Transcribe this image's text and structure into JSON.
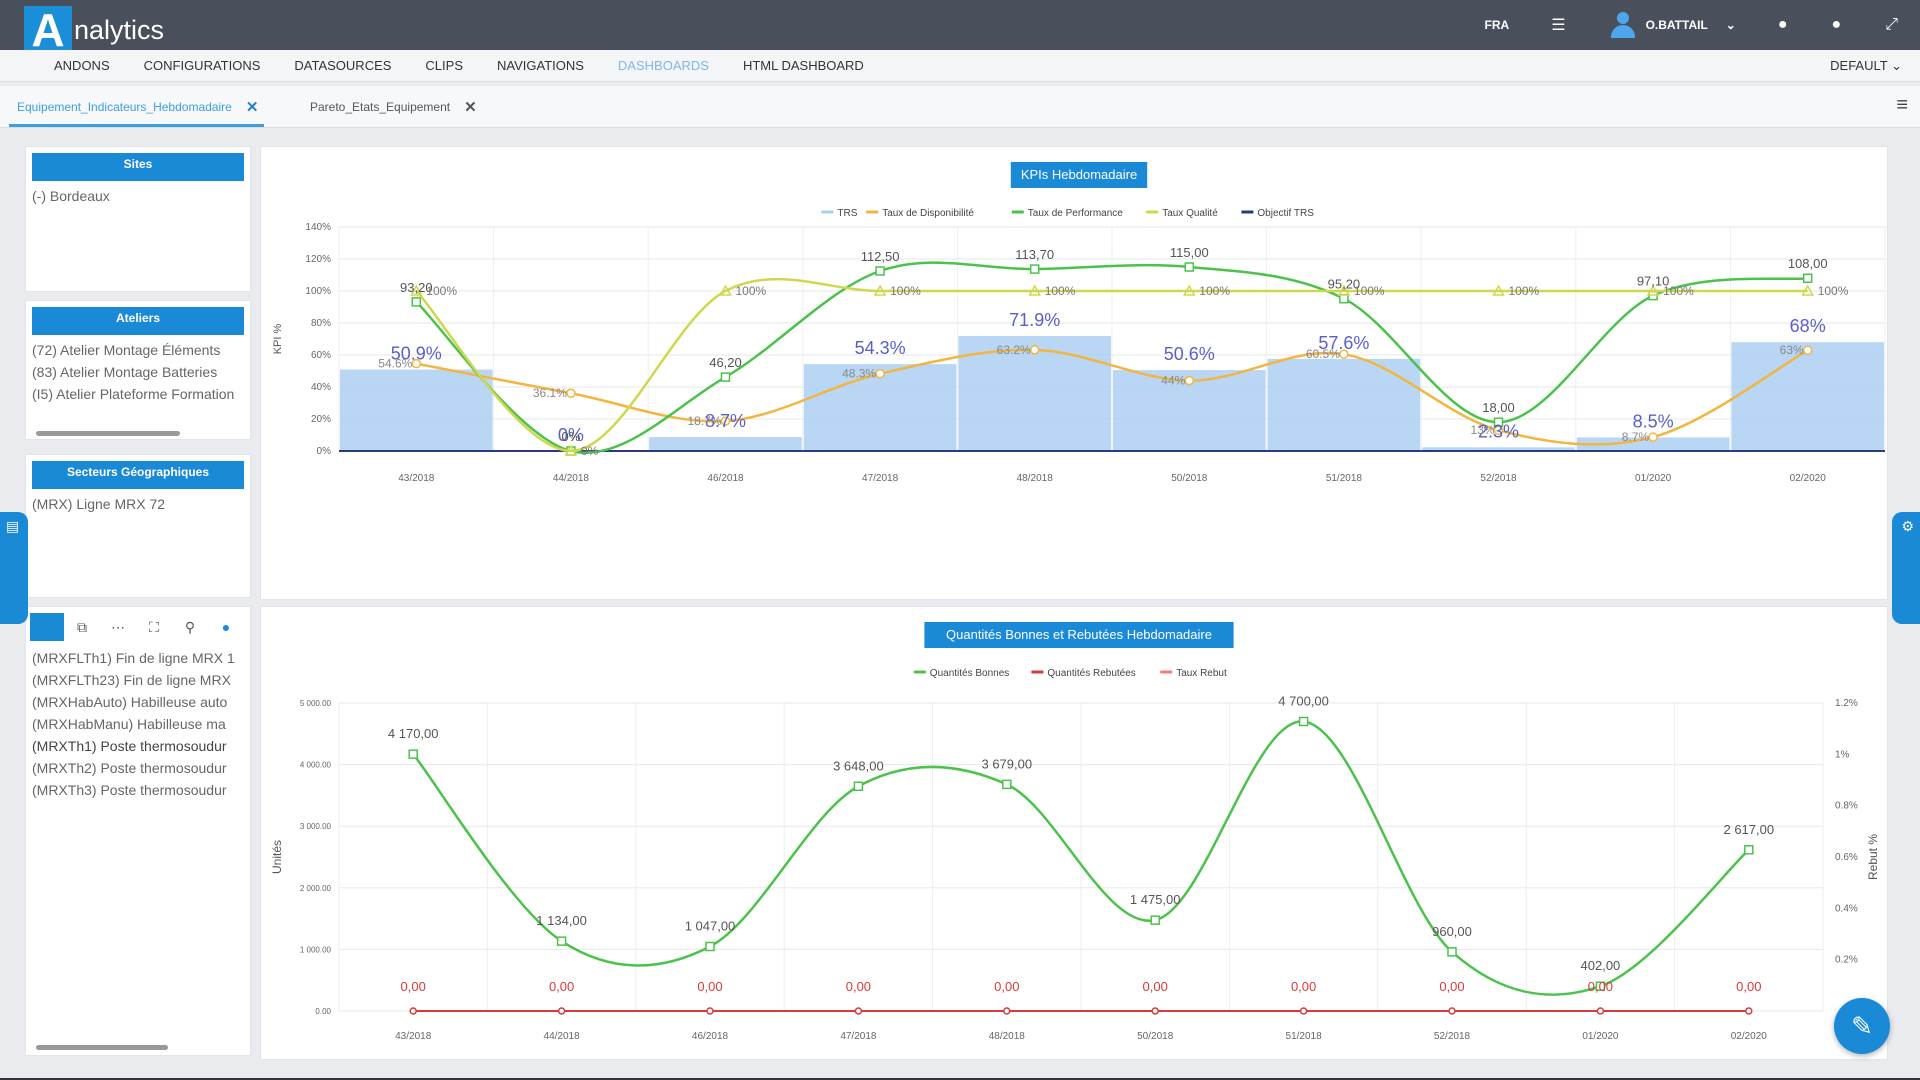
{
  "app": {
    "logo_letter": "A",
    "logo_rest": "nalytics"
  },
  "topbar": {
    "lang": "FRA",
    "user": "O.BATTAIL",
    "menu_icon": "list-icon",
    "help_icon": "question-icon",
    "info_icon": "info-icon",
    "fullscreen_icon": "expand-icon"
  },
  "menu": {
    "items": [
      "ANDONS",
      "CONFIGURATIONS",
      "DATASOURCES",
      "CLIPS",
      "NAVIGATIONS",
      "DASHBOARDS",
      "HTML DASHBOARD"
    ],
    "active": "DASHBOARDS",
    "default_label": "DEFAULT"
  },
  "tabs": [
    {
      "label": "Equipement_Indicateurs_Hebdomadaire",
      "close": "✕"
    },
    {
      "label": "Pareto_Etats_Equipement",
      "close": "✕"
    }
  ],
  "filters": {
    "sites": {
      "title": "Sites",
      "items": [
        "(-) Bordeaux"
      ]
    },
    "ateliers": {
      "title": "Ateliers",
      "items": [
        "(72) Atelier Montage Éléments",
        "(83) Atelier Montage Batteries",
        "(I5) Atelier Plateforme Formation"
      ]
    },
    "secteurs": {
      "title": "Secteurs Géographiques",
      "items": [
        "(MRX) Ligne MRX 72"
      ]
    },
    "equipements": {
      "items": [
        "(MRXFLTh1) Fin de ligne MRX 1",
        "(MRXFLTh23) Fin de ligne MRX",
        "(MRXHabAuto) Habilleuse auto",
        "(MRXHabManu) Habilleuse ma",
        "(MRXTh1) Poste thermosoudur",
        "(MRXTh2) Poste thermosoudur",
        "(MRXTh3) Poste thermosoudur"
      ]
    }
  },
  "chart_data": [
    {
      "type": "line",
      "title": "KPIs Hebdomadaire",
      "ylabel": "KPI %",
      "ylim": [
        0,
        140
      ],
      "yticks": [
        "0%",
        "20%",
        "40%",
        "60%",
        "80%",
        "100%",
        "120%",
        "140%"
      ],
      "categories": [
        "43/2018",
        "44/2018",
        "46/2018",
        "47/2018",
        "48/2018",
        "50/2018",
        "51/2018",
        "52/2018",
        "01/2020",
        "02/2020"
      ],
      "legend": [
        "TRS",
        "Taux de Disponibilité",
        "Taux de Performance",
        "Taux Qualité",
        "Objectif TRS"
      ],
      "colors": {
        "trs": "#a8cdf2",
        "dispo": "#f2b540",
        "perf": "#4cc24c",
        "qual": "#cfd84c",
        "objectif": "#2a3a7a"
      },
      "series": [
        {
          "name": "TRS",
          "kind": "bar",
          "values": [
            50.9,
            0,
            8.7,
            54.3,
            71.9,
            50.6,
            57.6,
            2.3,
            8.5,
            68
          ],
          "labels": [
            "50.9%",
            "0%",
            "8.7%",
            "54.3%",
            "71.9%",
            "50.6%",
            "57.6%",
            "2.3%",
            "8.5%",
            "68%"
          ]
        },
        {
          "name": "Taux de Disponibilité",
          "values": [
            54.6,
            36.1,
            18.7,
            48.3,
            63.2,
            44,
            60.5,
            13,
            8.7,
            63
          ],
          "labels": [
            "54.6%",
            "36.1%",
            "18.7%",
            "48.3%",
            "63.2%",
            "44%",
            "60.5%",
            "13%",
            "8.7%",
            "63%"
          ]
        },
        {
          "name": "Taux de Performance",
          "values": [
            93.2,
            0,
            46.2,
            112.5,
            113.7,
            115,
            95.2,
            18,
            97.1,
            108
          ],
          "labels": [
            "93,20",
            "0%",
            "46,20",
            "112,50",
            "113,70",
            "115,00",
            "95,20",
            "18,00",
            "97,10",
            "108,00"
          ]
        },
        {
          "name": "Taux Qualité",
          "values": [
            100,
            0,
            100,
            100,
            100,
            100,
            100,
            100,
            100,
            100
          ],
          "labels": [
            "100%",
            "0%",
            "100%",
            "100%",
            "100%",
            "100%",
            "100%",
            "100%",
            "100%",
            "100%"
          ]
        },
        {
          "name": "Objectif TRS",
          "values": [
            0,
            0,
            0,
            0,
            0,
            0,
            0,
            0,
            0,
            0
          ]
        }
      ]
    },
    {
      "type": "line",
      "title": "Quantités Bonnes et Rebutées Hebdomadaire",
      "ylabel": "Unités",
      "y2label": "Rebut %",
      "ylim": [
        0,
        5000
      ],
      "yticks": [
        "0.00",
        "1 000.00",
        "2 000.00",
        "3 000.00",
        "4 000.00",
        "5 000.00"
      ],
      "y2ticks": [
        "0.2%",
        "0.4%",
        "0.6%",
        "0.8%",
        "1%",
        "1.2%"
      ],
      "categories": [
        "43/2018",
        "44/2018",
        "46/2018",
        "47/2018",
        "48/2018",
        "50/2018",
        "51/2018",
        "52/2018",
        "01/2020",
        "02/2020"
      ],
      "legend": [
        "Quantités Bonnes",
        "Quantités Rebutées",
        "Taux Rebut"
      ],
      "colors": {
        "bonnes": "#4cc24c",
        "rebutees": "#d93a3a",
        "taux": "#f07d7d"
      },
      "series": [
        {
          "name": "Quantités Bonnes",
          "values": [
            4170,
            1134,
            1047,
            3648,
            3679,
            1475,
            4700,
            960,
            402,
            2617
          ],
          "labels": [
            "4 170,00",
            "1 134,00",
            "1 047,00",
            "3 648,00",
            "3 679,00",
            "1 475,00",
            "4 700,00",
            "960,00",
            "402,00",
            "2 617,00"
          ]
        },
        {
          "name": "Quantités Rebutées",
          "values": [
            0,
            0,
            0,
            0,
            0,
            0,
            0,
            0,
            0,
            0
          ],
          "labels": [
            "0,00",
            "0,00",
            "0,00",
            "0,00",
            "0,00",
            "0,00",
            "0,00",
            "0,00",
            "0,00",
            "0,00"
          ]
        },
        {
          "name": "Taux Rebut",
          "values": [
            0,
            0,
            0,
            0,
            0,
            0,
            0,
            0,
            0,
            0
          ]
        }
      ]
    }
  ],
  "fab_icon": "pencil-icon"
}
